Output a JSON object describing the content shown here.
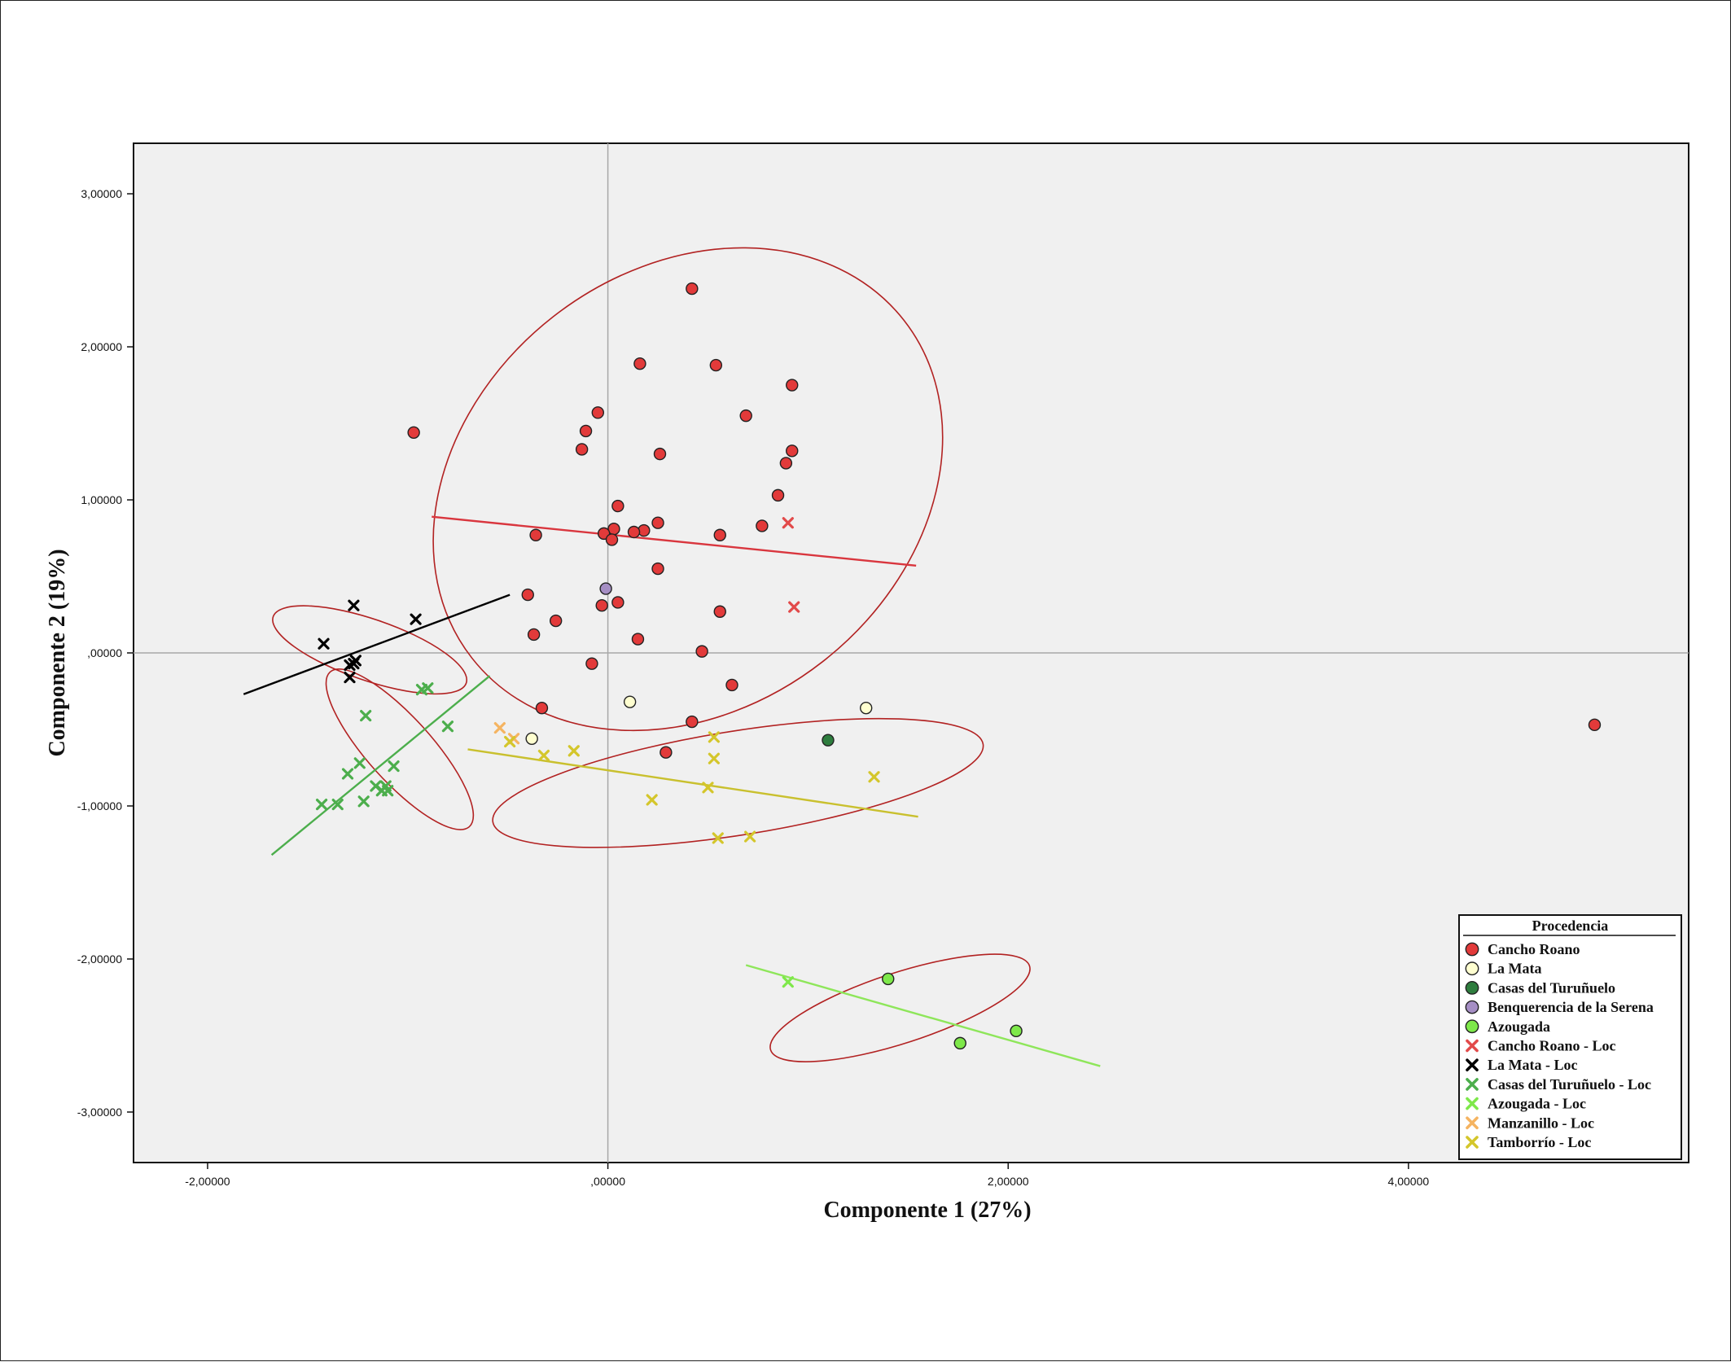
{
  "chart_data": {
    "type": "scatter",
    "title": "",
    "xlabel": "Componente 1 (27%)",
    "ylabel": "Componente 2 (19%)",
    "xlim": [
      -2.37,
      5.4
    ],
    "ylim": [
      -3.33,
      3.33
    ],
    "grid": false,
    "reference_lines": {
      "x": 0,
      "y": 0
    },
    "x_ticks": [
      {
        "value": -2,
        "label": "-2,00000"
      },
      {
        "value": 0,
        "label": ",00000"
      },
      {
        "value": 2,
        "label": "2,00000"
      },
      {
        "value": 4,
        "label": "4,00000"
      }
    ],
    "y_ticks": [
      {
        "value": 3,
        "label": "3,00000"
      },
      {
        "value": 2,
        "label": "2,00000"
      },
      {
        "value": 1,
        "label": "1,00000"
      },
      {
        "value": 0,
        "label": ",00000"
      },
      {
        "value": -1,
        "label": "-1,00000"
      },
      {
        "value": -2,
        "label": "-2,00000"
      },
      {
        "value": -3,
        "label": "-3,00000"
      }
    ],
    "legend": {
      "title": "Procedencia",
      "placement": "bottom-right",
      "entries": [
        {
          "label": "Cancho Roano",
          "marker": "circle",
          "color": "#e23a3a"
        },
        {
          "label": "La Mata",
          "marker": "circle",
          "color": "#ffffd0"
        },
        {
          "label": "Casas del Turuñuelo",
          "marker": "circle",
          "color": "#2e7d3e"
        },
        {
          "label": "Benquerencia de la Serena",
          "marker": "circle",
          "color": "#a58ec4"
        },
        {
          "label": "Azougada",
          "marker": "circle",
          "color": "#7ee84a"
        },
        {
          "label": "Cancho Roano - Loc",
          "marker": "x",
          "color": "#e24a4a"
        },
        {
          "label": "La Mata - Loc",
          "marker": "x",
          "color": "#000000"
        },
        {
          "label": "Casas del Turuñuelo - Loc",
          "marker": "x",
          "color": "#4cae4c"
        },
        {
          "label": "Azougada - Loc",
          "marker": "x",
          "color": "#7ee84a"
        },
        {
          "label": "Manzanillo - Loc",
          "marker": "x",
          "color": "#f5b461"
        },
        {
          "label": "Tamborrío - Loc",
          "marker": "x",
          "color": "#d4c62b"
        }
      ]
    },
    "series": [
      {
        "name": "Cancho Roano",
        "marker": "circle",
        "color": "#e23a3a",
        "points": [
          [
            0.42,
            2.38
          ],
          [
            0.16,
            1.89
          ],
          [
            0.54,
            1.88
          ],
          [
            0.92,
            1.75
          ],
          [
            -0.05,
            1.57
          ],
          [
            0.69,
            1.55
          ],
          [
            -0.11,
            1.45
          ],
          [
            -0.97,
            1.44
          ],
          [
            -0.13,
            1.33
          ],
          [
            0.92,
            1.32
          ],
          [
            0.26,
            1.3
          ],
          [
            0.89,
            1.24
          ],
          [
            0.85,
            1.03
          ],
          [
            0.05,
            0.96
          ],
          [
            0.25,
            0.85
          ],
          [
            0.77,
            0.83
          ],
          [
            0.03,
            0.81
          ],
          [
            0.18,
            0.8
          ],
          [
            0.13,
            0.79
          ],
          [
            -0.02,
            0.78
          ],
          [
            -0.36,
            0.77
          ],
          [
            0.56,
            0.77
          ],
          [
            0.02,
            0.74
          ],
          [
            0.25,
            0.55
          ],
          [
            -0.4,
            0.38
          ],
          [
            0.05,
            0.33
          ],
          [
            -0.03,
            0.31
          ],
          [
            0.56,
            0.27
          ],
          [
            -0.26,
            0.21
          ],
          [
            -0.37,
            0.12
          ],
          [
            0.15,
            0.09
          ],
          [
            0.47,
            0.01
          ],
          [
            -0.08,
            -0.07
          ],
          [
            0.62,
            -0.21
          ],
          [
            -0.33,
            -0.36
          ],
          [
            0.42,
            -0.45
          ],
          [
            0.29,
            -0.65
          ],
          [
            4.93,
            -0.47
          ]
        ]
      },
      {
        "name": "La Mata",
        "marker": "circle",
        "color": "#ffffd0",
        "points": [
          [
            0.11,
            -0.32
          ],
          [
            1.29,
            -0.36
          ],
          [
            -0.38,
            -0.56
          ]
        ]
      },
      {
        "name": "Casas del Turuñuelo",
        "marker": "circle",
        "color": "#2e7d3e",
        "points": [
          [
            1.1,
            -0.57
          ]
        ]
      },
      {
        "name": "Benquerencia de la Serena",
        "marker": "circle",
        "color": "#a58ec4",
        "points": [
          [
            -0.01,
            0.42
          ]
        ]
      },
      {
        "name": "Azougada",
        "marker": "circle",
        "color": "#7ee84a",
        "points": [
          [
            1.4,
            -2.13
          ],
          [
            2.04,
            -2.47
          ],
          [
            1.76,
            -2.55
          ]
        ]
      },
      {
        "name": "Cancho Roano - Loc",
        "marker": "x",
        "color": "#e24a4a",
        "points": [
          [
            0.9,
            0.85
          ],
          [
            0.93,
            0.3
          ]
        ]
      },
      {
        "name": "La Mata - Loc",
        "marker": "x",
        "color": "#000000",
        "points": [
          [
            -1.27,
            0.31
          ],
          [
            -0.96,
            0.22
          ],
          [
            -1.42,
            0.06
          ],
          [
            -1.26,
            -0.05
          ],
          [
            -1.27,
            -0.07
          ],
          [
            -1.29,
            -0.08
          ],
          [
            -1.29,
            -0.16
          ]
        ]
      },
      {
        "name": "Casas del Turuñuelo - Loc",
        "marker": "x",
        "color": "#4cae4c",
        "points": [
          [
            -0.9,
            -0.23
          ],
          [
            -0.93,
            -0.24
          ],
          [
            -1.21,
            -0.41
          ],
          [
            -0.8,
            -0.48
          ],
          [
            -1.24,
            -0.72
          ],
          [
            -1.07,
            -0.74
          ],
          [
            -1.3,
            -0.79
          ],
          [
            -1.16,
            -0.87
          ],
          [
            -1.11,
            -0.87
          ],
          [
            -1.1,
            -0.9
          ],
          [
            -1.13,
            -0.9
          ],
          [
            -1.22,
            -0.97
          ],
          [
            -1.35,
            -0.99
          ],
          [
            -1.43,
            -0.99
          ]
        ]
      },
      {
        "name": "Azougada - Loc",
        "marker": "x",
        "color": "#7ee84a",
        "points": [
          [
            0.9,
            -2.15
          ]
        ]
      },
      {
        "name": "Manzanillo - Loc",
        "marker": "x",
        "color": "#f5b461",
        "points": [
          [
            -0.54,
            -0.49
          ],
          [
            -0.47,
            -0.56
          ]
        ]
      },
      {
        "name": "Tamborrío - Loc",
        "marker": "x",
        "color": "#d4c62b",
        "points": [
          [
            0.53,
            -0.55
          ],
          [
            -0.49,
            -0.58
          ],
          [
            -0.17,
            -0.64
          ],
          [
            -0.32,
            -0.67
          ],
          [
            0.53,
            -0.69
          ],
          [
            1.33,
            -0.81
          ],
          [
            0.5,
            -0.88
          ],
          [
            0.22,
            -0.96
          ],
          [
            0.71,
            -1.2
          ],
          [
            0.55,
            -1.21
          ]
        ]
      }
    ],
    "fit_lines": [
      {
        "color": "#d9363e",
        "from": [
          -0.88,
          0.89
        ],
        "to": [
          1.54,
          0.57
        ]
      },
      {
        "color": "#000000",
        "from": [
          -1.82,
          -0.27
        ],
        "to": [
          -0.49,
          0.38
        ]
      },
      {
        "color": "#4cae4c",
        "from": [
          -1.68,
          -1.32
        ],
        "to": [
          -0.59,
          -0.15
        ]
      },
      {
        "color": "#c9c02e",
        "from": [
          -0.7,
          -0.63
        ],
        "to": [
          1.55,
          -1.07
        ]
      },
      {
        "color": "#8ee65a",
        "from": [
          0.69,
          -2.04
        ],
        "to": [
          2.46,
          -2.7
        ]
      }
    ],
    "ellipses": [
      {
        "color": "#b22222",
        "cx": 0.4,
        "cy": 1.07,
        "rx": 1.37,
        "ry": 1.43,
        "rotation_deg": 38
      },
      {
        "color": "#b22222",
        "cx": -1.19,
        "cy": 0.02,
        "rx": 0.51,
        "ry": 0.2,
        "rotation_deg": -19
      },
      {
        "color": "#b22222",
        "cx": -1.04,
        "cy": -0.63,
        "rx": 0.52,
        "ry": 0.21,
        "rotation_deg": -48
      },
      {
        "color": "#b22222",
        "cx": 0.65,
        "cy": -0.85,
        "rx": 1.24,
        "ry": 0.34,
        "rotation_deg": 9
      },
      {
        "color": "#b22222",
        "cx": 1.46,
        "cy": -2.32,
        "rx": 0.68,
        "ry": 0.23,
        "rotation_deg": 18
      }
    ]
  }
}
